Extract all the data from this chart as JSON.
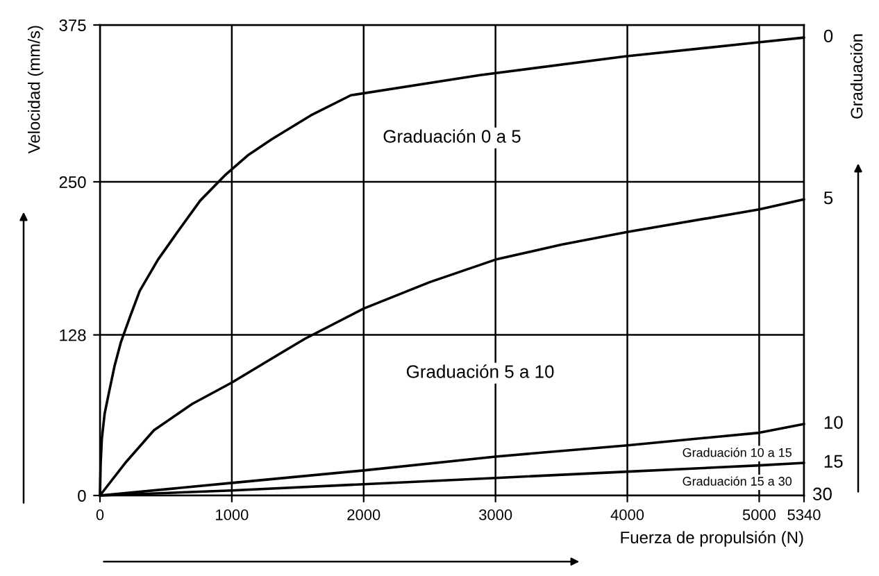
{
  "chart_data": {
    "type": "line",
    "xlabel": "Fuerza de propulsión (N)",
    "ylabel": "Velocidad (mm/s)",
    "xlim": [
      0,
      5340
    ],
    "xticks": [
      0,
      1000,
      2000,
      3000,
      4000,
      5000,
      5340
    ],
    "ylim": [
      0,
      375
    ],
    "yticks": [
      0,
      128,
      250,
      375
    ],
    "grid": true,
    "legend": false,
    "marker": "none",
    "line_style": "solid",
    "series": [
      {
        "name": "0",
        "color": "#000000",
        "x": [
          0,
          5,
          14,
          35,
          68,
          110,
          158,
          230,
          301,
          440,
          588,
          760,
          946,
          1120,
          1304,
          1600,
          1903,
          2882,
          3982,
          4982,
          5340
        ],
        "values": [
          0,
          25,
          45,
          65,
          82,
          103,
          122,
          143,
          163,
          188,
          210,
          235,
          255,
          271,
          284,
          303,
          319,
          335,
          350,
          361,
          365
        ]
      },
      {
        "name": "5",
        "color": "#000000",
        "x": [
          0,
          200,
          409,
          700,
          1000,
          1300,
          1556,
          2000,
          2500,
          3000,
          3500,
          4000,
          5000,
          5340
        ],
        "values": [
          0,
          27,
          52,
          73,
          90,
          109,
          125,
          149,
          170,
          188,
          200,
          210,
          228,
          236
        ]
      },
      {
        "name": "10",
        "color": "#000000",
        "x": [
          0,
          1000,
          2000,
          3000,
          4000,
          5000,
          5340
        ],
        "values": [
          0,
          10,
          20,
          31,
          40,
          50,
          57
        ]
      },
      {
        "name": "15",
        "color": "#000000",
        "x": [
          0,
          1000,
          2000,
          3000,
          4000,
          5000,
          5340
        ],
        "values": [
          0,
          4,
          9,
          14,
          19,
          24,
          26
        ]
      }
    ],
    "annotations": [
      "Graduación 0 a 5",
      "Graduación 5 a 10",
      "Graduación 10 a 15",
      "Graduación 15 a 30",
      "Graduación",
      "30"
    ]
  }
}
